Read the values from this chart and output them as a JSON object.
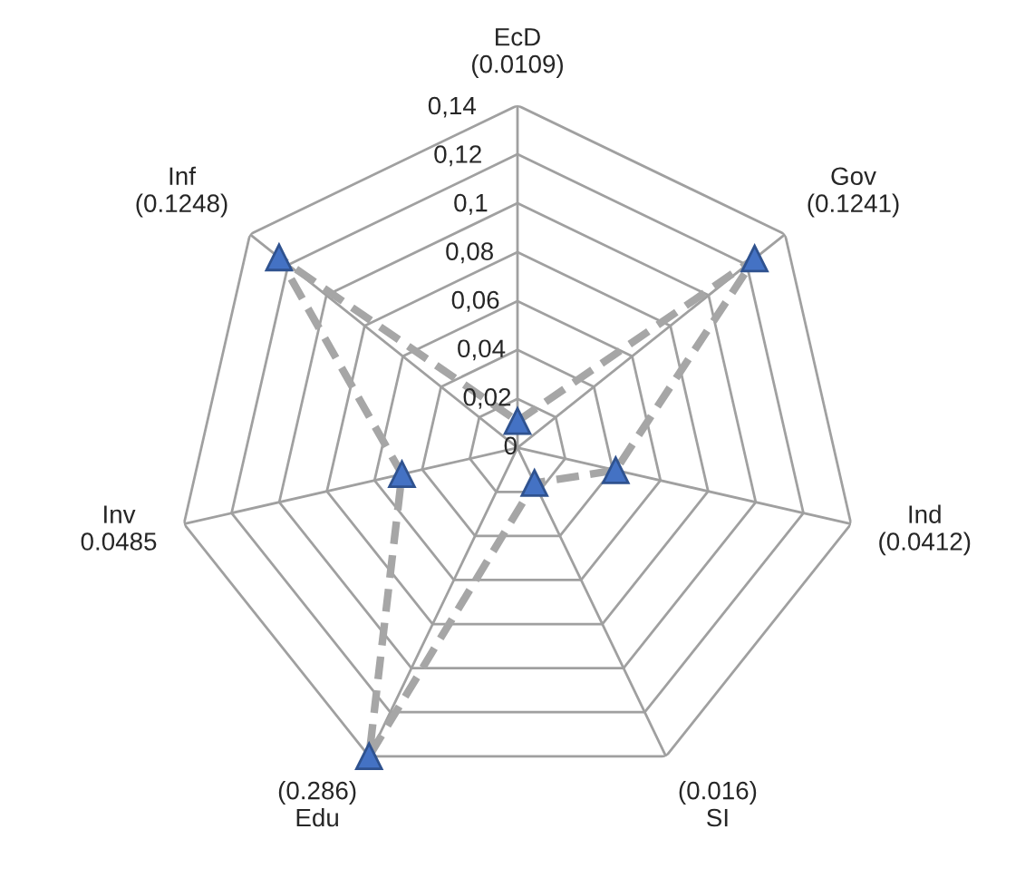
{
  "chart_data": {
    "type": "radar",
    "categories": [
      "EcD\n(0.0109)",
      "Gov\n(0.1241)",
      "Ind\n(0.0412)",
      "(0.016)\nSI",
      "(0.286)\nEdu",
      "Inv\n0.0485",
      "Inf\n(0.1248)"
    ],
    "series": [
      {
        "color": "#a6a6a6",
        "values": [
          0.0109,
          0.1241,
          0.0412,
          0.016,
          0.14,
          0.0485,
          0.1248
        ]
      }
    ],
    "ylim": [
      0,
      0.14
    ],
    "yticks": [
      0,
      {
        "value": 0.02,
        "label": "0,02"
      },
      {
        "value": 0.04,
        "label": "0,04"
      },
      {
        "value": 0.06,
        "label": "0,06"
      },
      {
        "value": 0.08,
        "label": "0,08"
      },
      {
        "value": 0.1,
        "label": "0,1"
      },
      {
        "value": 0.12,
        "label": "0,12"
      },
      {
        "value": 0.14,
        "label": "0,14"
      }
    ],
    "marker": "triangle",
    "line_style": "dashed",
    "grid": true
  }
}
